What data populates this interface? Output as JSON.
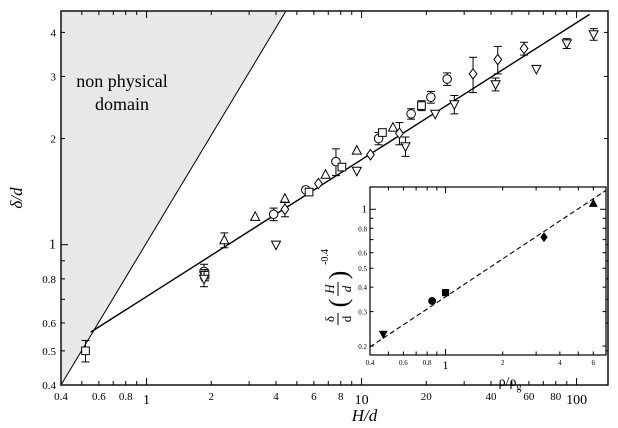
{
  "chart_data": [
    {
      "type": "scatter",
      "scale": "log-log",
      "xlabel": "H/d",
      "ylabel": "δ/d",
      "xlim": [
        0.4,
        140
      ],
      "ylim": [
        0.4,
        4.6
      ],
      "x_tick_labels": [
        {
          "v": 0.4,
          "t": "0.4"
        },
        {
          "v": 0.6,
          "t": "0.6"
        },
        {
          "v": 0.8,
          "t": "0.8"
        },
        {
          "v": 1,
          "t": "1",
          "major": true
        },
        {
          "v": 2,
          "t": "2"
        },
        {
          "v": 4,
          "t": "4"
        },
        {
          "v": 6,
          "t": "6"
        },
        {
          "v": 8,
          "t": "8"
        },
        {
          "v": 10,
          "t": "10",
          "major": true
        },
        {
          "v": 20,
          "t": "20"
        },
        {
          "v": 40,
          "t": "40"
        },
        {
          "v": 60,
          "t": "60"
        },
        {
          "v": 80,
          "t": "80"
        },
        {
          "v": 100,
          "t": "100",
          "major": true
        }
      ],
      "y_tick_labels": [
        {
          "v": 0.4,
          "t": "0.4"
        },
        {
          "v": 0.5,
          "t": "0.5"
        },
        {
          "v": 0.6,
          "t": "0.6"
        },
        {
          "v": 0.8,
          "t": "0.8"
        },
        {
          "v": 1,
          "t": "1",
          "major": true
        },
        {
          "v": 2,
          "t": "2"
        },
        {
          "v": 3,
          "t": "3"
        },
        {
          "v": 4,
          "t": "4"
        }
      ],
      "shaded_region": {
        "label_lines": [
          "non physical",
          "domain"
        ],
        "vertices": [
          [
            0.4,
            0.4
          ],
          [
            0.4,
            4.6
          ],
          [
            4.45,
            4.6
          ]
        ],
        "fill": "#e8e8e8"
      },
      "fit_line": {
        "x": [
          0.55,
          115
        ],
        "y": [
          0.565,
          4.5
        ]
      },
      "series": [
        {
          "marker": "circle",
          "points": [
            {
              "x": 1.85,
              "y": 0.84,
              "err": 0.04
            },
            {
              "x": 3.9,
              "y": 1.22,
              "err": 0.05
            },
            {
              "x": 5.5,
              "y": 1.43
            },
            {
              "x": 7.6,
              "y": 1.72,
              "err": 0.15
            },
            {
              "x": 12,
              "y": 2.0,
              "err": 0.08
            },
            {
              "x": 17,
              "y": 2.35,
              "err": 0.08
            },
            {
              "x": 21,
              "y": 2.62,
              "err": 0.1
            },
            {
              "x": 25,
              "y": 2.95,
              "err": 0.12
            }
          ]
        },
        {
          "marker": "square",
          "points": [
            {
              "x": 0.52,
              "y": 0.5,
              "err": 0.035
            },
            {
              "x": 1.87,
              "y": 0.82,
              "err": 0.03
            },
            {
              "x": 5.7,
              "y": 1.41
            },
            {
              "x": 8.1,
              "y": 1.66
            },
            {
              "x": 12.5,
              "y": 2.08
            },
            {
              "x": 19,
              "y": 2.48,
              "err": 0.08
            }
          ]
        },
        {
          "marker": "triangle-up",
          "points": [
            {
              "x": 2.3,
              "y": 1.03,
              "err": 0.05
            },
            {
              "x": 3.2,
              "y": 1.2
            },
            {
              "x": 4.4,
              "y": 1.35
            },
            {
              "x": 6.8,
              "y": 1.58
            },
            {
              "x": 9.5,
              "y": 1.85
            },
            {
              "x": 14,
              "y": 2.15
            }
          ]
        },
        {
          "marker": "triangle-down",
          "points": [
            {
              "x": 1.85,
              "y": 0.8,
              "err": 0.04
            },
            {
              "x": 4.0,
              "y": 1.0
            },
            {
              "x": 9.5,
              "y": 1.62
            },
            {
              "x": 16,
              "y": 1.9,
              "err": 0.12
            },
            {
              "x": 22,
              "y": 2.35
            },
            {
              "x": 27,
              "y": 2.5,
              "err": 0.15
            },
            {
              "x": 42,
              "y": 2.85,
              "err": 0.12
            },
            {
              "x": 65,
              "y": 3.15
            },
            {
              "x": 90,
              "y": 3.72,
              "err": 0.12
            },
            {
              "x": 120,
              "y": 3.95,
              "err": 0.15
            }
          ]
        },
        {
          "marker": "diamond",
          "points": [
            {
              "x": 4.4,
              "y": 1.26,
              "err": 0.06
            },
            {
              "x": 6.3,
              "y": 1.49
            },
            {
              "x": 11,
              "y": 1.8
            },
            {
              "x": 15,
              "y": 2.07,
              "err": 0.15
            },
            {
              "x": 33,
              "y": 3.05,
              "err": 0.35
            },
            {
              "x": 43,
              "y": 3.35,
              "err": 0.3
            },
            {
              "x": 57,
              "y": 3.6,
              "err": 0.15
            }
          ]
        }
      ]
    },
    {
      "type": "scatter",
      "scale": "log-log",
      "inset": true,
      "xlabel": "ρ/ρg",
      "ylabel": "δ/d (H/d)^-0.4",
      "xlim": [
        0.4,
        7
      ],
      "ylim": [
        0.18,
        1.3
      ],
      "x_tick_labels": [
        {
          "v": 0.4,
          "t": "0.4"
        },
        {
          "v": 0.6,
          "t": "0.6"
        },
        {
          "v": 0.8,
          "t": "0.8"
        },
        {
          "v": 1,
          "t": "1",
          "major": true
        },
        {
          "v": 2,
          "t": "2"
        },
        {
          "v": 4,
          "t": "4"
        },
        {
          "v": 6,
          "t": "6"
        }
      ],
      "y_tick_labels": [
        {
          "v": 0.2,
          "t": "0.2"
        },
        {
          "v": 0.3,
          "t": "0.3"
        },
        {
          "v": 0.4,
          "t": "0.4"
        },
        {
          "v": 0.5,
          "t": "0.5"
        },
        {
          "v": 0.6,
          "t": "0.6"
        },
        {
          "v": 0.8,
          "t": "0.8"
        },
        {
          "v": 1,
          "t": "1",
          "major": true
        }
      ],
      "fit_line": {
        "x": [
          0.4,
          7
        ],
        "y": [
          0.198,
          1.25
        ]
      },
      "points": [
        {
          "marker": "triangle-down-filled",
          "x": 0.47,
          "y": 0.23
        },
        {
          "marker": "circle-filled",
          "x": 0.85,
          "y": 0.34
        },
        {
          "marker": "square-filled",
          "x": 1.0,
          "y": 0.375
        },
        {
          "marker": "diamond-filled",
          "x": 3.3,
          "y": 0.72
        },
        {
          "marker": "triangle-up-filled",
          "x": 6.0,
          "y": 1.07
        }
      ]
    }
  ]
}
